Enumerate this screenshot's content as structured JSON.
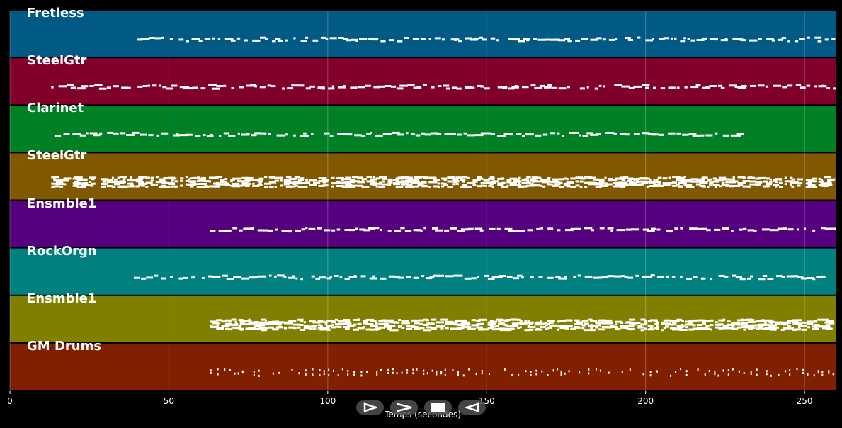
{
  "chart_data": {
    "type": "piano-roll",
    "xlabel": "Temps (secondes)",
    "xlim": [
      0,
      260
    ],
    "x_ticks": [
      0,
      50,
      100,
      150,
      200,
      250
    ],
    "tracks": [
      {
        "name": "Fretless",
        "color": "#005a85",
        "notes_start": 40,
        "notes_end": 260,
        "density": "medium"
      },
      {
        "name": "SteelGtr",
        "color": "#80002a",
        "notes_start": 13,
        "notes_end": 260,
        "density": "medium"
      },
      {
        "name": "Clarinet",
        "color": "#008024",
        "notes_start": 14,
        "notes_end": 233,
        "density": "medium"
      },
      {
        "name": "SteelGtr",
        "color": "#805800",
        "notes_start": 13,
        "notes_end": 260,
        "density": "high"
      },
      {
        "name": "Ensmble1",
        "color": "#55007f",
        "notes_start": 63,
        "notes_end": 260,
        "density": "medium"
      },
      {
        "name": "RockOrgn",
        "color": "#00807f",
        "notes_start": 39,
        "notes_end": 260,
        "density": "medium"
      },
      {
        "name": "Ensmble1",
        "color": "#807f00",
        "notes_start": 63,
        "notes_end": 260,
        "density": "high"
      },
      {
        "name": "GM Drums",
        "color": "#802000",
        "notes_start": 63,
        "notes_end": 260,
        "density": "sparse"
      }
    ]
  },
  "controls": [
    {
      "label": "play",
      "icon": "play-icon"
    },
    {
      "label": "forward",
      "icon": "fast-forward-icon"
    },
    {
      "label": "stop",
      "icon": "stop-icon"
    },
    {
      "label": "back",
      "icon": "rewind-icon"
    }
  ]
}
